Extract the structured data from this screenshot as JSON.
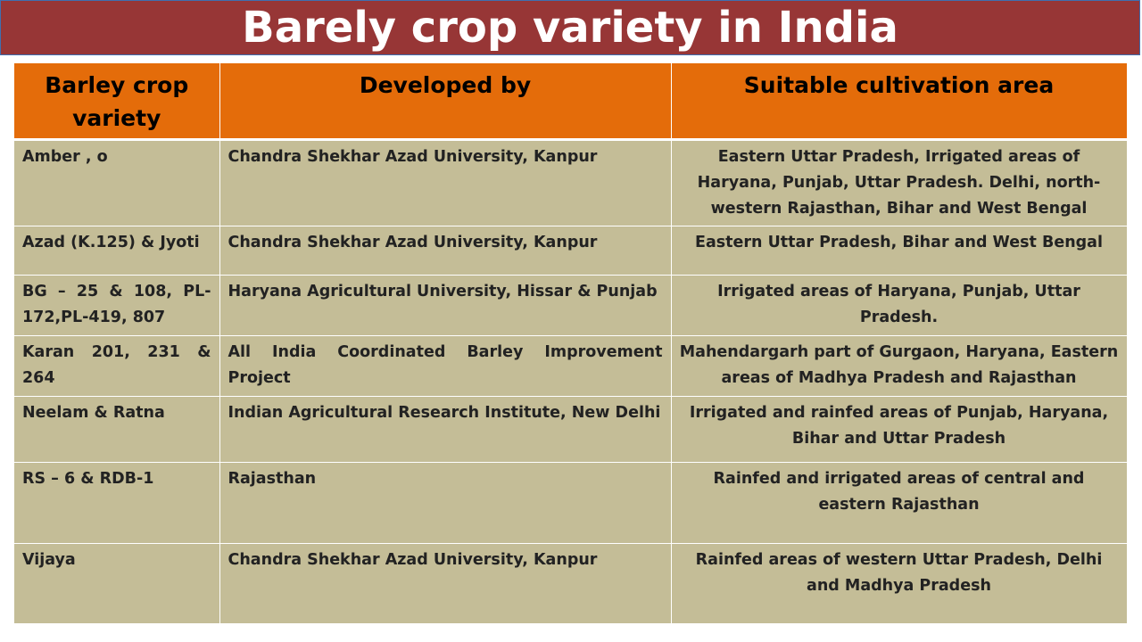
{
  "title": "Barely crop variety in India",
  "table": {
    "headers": [
      "Barley crop variety",
      "Developed by",
      "Suitable cultivation area"
    ],
    "rows": [
      {
        "variety": "Amber , o",
        "developer": "Chandra Shekhar Azad University, Kanpur",
        "area": "Eastern Uttar Pradesh, Irrigated areas of Haryana, Punjab, Uttar Pradesh. Delhi, north-western Rajasthan, Bihar and West Bengal"
      },
      {
        "variety": "Azad (K.125) & Jyoti",
        "developer": "Chandra Shekhar Azad University, Kanpur",
        "area": "Eastern Uttar Pradesh, Bihar and West Bengal"
      },
      {
        "variety": "BG – 25 & 108, PL-172,PL-419, 807",
        "developer": "Haryana Agricultural University, Hissar & Punjab",
        "area": "Irrigated areas of Haryana, Punjab, Uttar Pradesh."
      },
      {
        "variety": "Karan 201, 231 & 264",
        "developer": "All India Coordinated Barley Improvement Project",
        "area": "Mahendargarh part of Gurgaon, Haryana, Eastern areas of Madhya Pradesh and Rajasthan"
      },
      {
        "variety": "Neelam & Ratna",
        "developer": "Indian Agricultural Research Institute, New Delhi",
        "area": "Irrigated and rainfed areas of Punjab, Haryana, Bihar and Uttar Pradesh"
      },
      {
        "variety": "RS – 6 & RDB-1",
        "developer": "Rajasthan",
        "area": "Rainfed and irrigated areas of central and eastern Rajasthan"
      },
      {
        "variety": "Vijaya",
        "developer": "Chandra Shekhar Azad University, Kanpur",
        "area": "Rainfed areas of western Uttar Pradesh, Delhi and Madhya Pradesh"
      }
    ]
  },
  "colors": {
    "title_bar": "#973636",
    "header_bg": "#e46c0a",
    "cell_bg": "#c4bd97"
  }
}
